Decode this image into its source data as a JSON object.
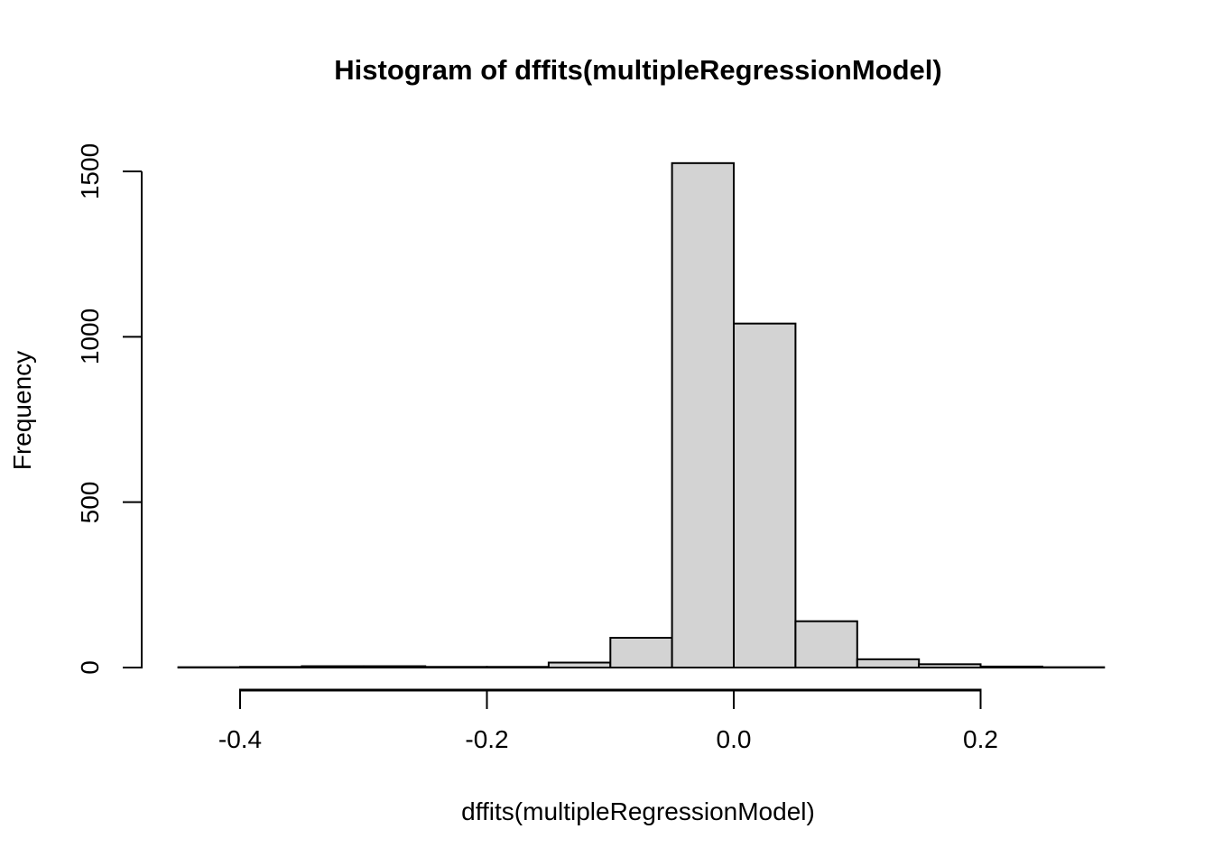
{
  "title": "Histogram of dffits(multipleRegressionModel)",
  "chart_data": {
    "type": "bar",
    "subtype": "histogram",
    "title": "Histogram of dffits(multipleRegressionModel)",
    "xlabel": "dffits(multipleRegressionModel)",
    "ylabel": "Frequency",
    "bin_width": 0.05,
    "bin_edges": [
      -0.45,
      -0.4,
      -0.35,
      -0.3,
      -0.25,
      -0.2,
      -0.15,
      -0.1,
      -0.05,
      0.0,
      0.05,
      0.1,
      0.15,
      0.2,
      0.25,
      0.3
    ],
    "counts": [
      1,
      2,
      4,
      4,
      2,
      2,
      15,
      90,
      1525,
      1040,
      140,
      25,
      10,
      3,
      1
    ],
    "x_ticks": [
      {
        "value": -0.4,
        "label": "-0.4"
      },
      {
        "value": -0.2,
        "label": "-0.2"
      },
      {
        "value": 0.0,
        "label": "0.0"
      },
      {
        "value": 0.2,
        "label": "0.2"
      }
    ],
    "y_ticks": [
      {
        "value": 0,
        "label": "0"
      },
      {
        "value": 500,
        "label": "500"
      },
      {
        "value": 1000,
        "label": "1000"
      },
      {
        "value": 1500,
        "label": "1500"
      }
    ],
    "xlim": [
      -0.474,
      0.324
    ],
    "ylim": [
      0,
      1500
    ],
    "grid": false,
    "legend": "none",
    "colors": {
      "bar_fill": "#d3d3d3",
      "bar_border": "#000000",
      "axis": "#000000",
      "text": "#000000",
      "background": "#ffffff"
    }
  }
}
